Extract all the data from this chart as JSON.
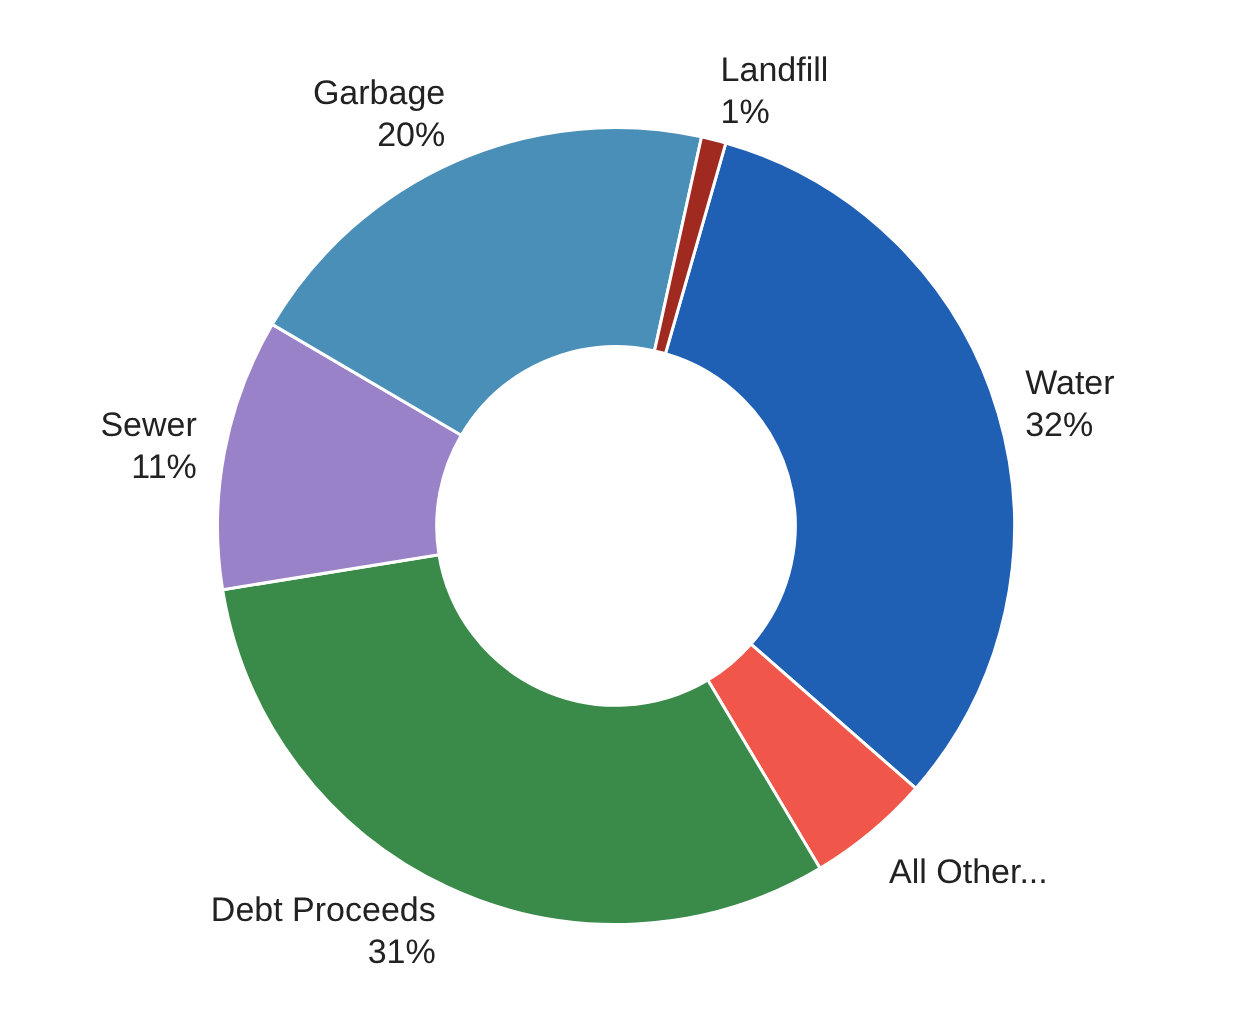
{
  "chart_data": {
    "type": "donut",
    "categories": [
      "Water",
      "All Other...",
      "Debt Proceeds",
      "Sewer",
      "Garbage",
      "Landfill"
    ],
    "values": [
      32,
      5,
      31,
      11,
      20,
      1
    ],
    "colors": [
      "#1f5fb4",
      "#f0574a",
      "#3a8a4a",
      "#9a82c8",
      "#4a8fb8",
      "#a02a20"
    ],
    "value_labels": [
      "32%",
      null,
      "31%",
      "11%",
      "20%",
      "1%"
    ],
    "legend": false
  }
}
